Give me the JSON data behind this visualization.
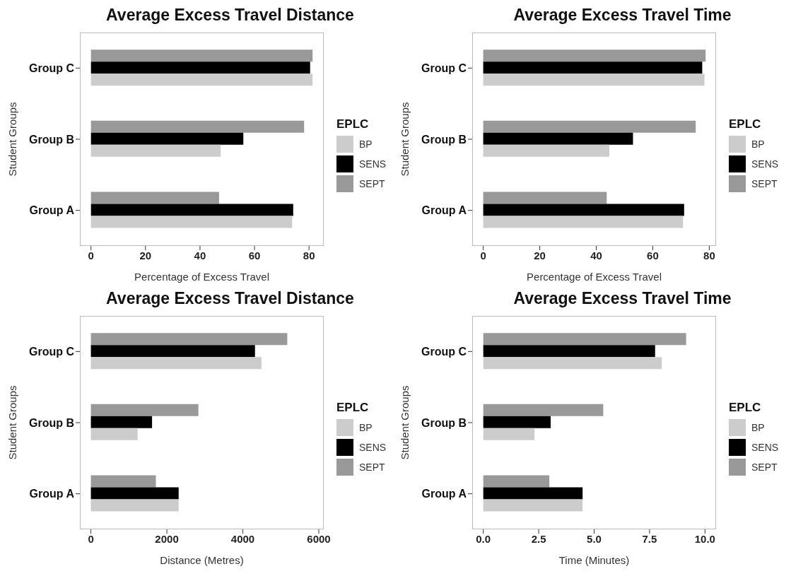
{
  "chart_data": [
    {
      "type": "bar",
      "orientation": "horizontal",
      "title": "Average Excess Travel Distance",
      "xlabel": "Percentage of Excess Travel",
      "ylabel": "Student Groups",
      "legend_title": "EPLC",
      "legend": "right",
      "grid": false,
      "categories": [
        "Group C",
        "Group B",
        "Group A"
      ],
      "xlim": [
        -4.07,
        85.4
      ],
      "xticks": [
        0,
        20,
        40,
        60,
        80
      ],
      "series": [
        {
          "name": "BP",
          "color": "#cccccc",
          "values": [
            81.3,
            47.6,
            73.8
          ]
        },
        {
          "name": "SENS",
          "color": "#000000",
          "values": [
            80.4,
            55.9,
            74.2
          ]
        },
        {
          "name": "SEPT",
          "color": "#999999",
          "values": [
            81.3,
            78.2,
            47.0
          ]
        }
      ]
    },
    {
      "type": "bar",
      "orientation": "horizontal",
      "title": "Average Excess Travel Time",
      "xlabel": "Percentage of Excess Travel",
      "ylabel": "Student Groups",
      "legend_title": "EPLC",
      "legend": "right",
      "grid": false,
      "categories": [
        "Group C",
        "Group B",
        "Group A"
      ],
      "xlim": [
        -3.9,
        82.4
      ],
      "xticks": [
        0,
        20,
        40,
        60,
        80
      ],
      "series": [
        {
          "name": "BP",
          "color": "#cccccc",
          "values": [
            78.3,
            44.6,
            70.7
          ]
        },
        {
          "name": "SENS",
          "color": "#000000",
          "values": [
            77.5,
            53.0,
            71.1
          ]
        },
        {
          "name": "SEPT",
          "color": "#999999",
          "values": [
            78.7,
            75.2,
            43.7
          ]
        }
      ]
    },
    {
      "type": "bar",
      "orientation": "horizontal",
      "title": "Average Excess Travel Distance",
      "xlabel": "Distance (Metres)",
      "ylabel": "Student Groups",
      "legend_title": "EPLC",
      "legend": "right",
      "grid": false,
      "categories": [
        "Group C",
        "Group B",
        "Group A"
      ],
      "xlim": [
        -290,
        6130
      ],
      "xticks": [
        0,
        2000,
        4000,
        6000
      ],
      "series": [
        {
          "name": "BP",
          "color": "#cccccc",
          "values": [
            4490,
            1230,
            2310
          ]
        },
        {
          "name": "SENS",
          "color": "#000000",
          "values": [
            4320,
            1610,
            2310
          ]
        },
        {
          "name": "SEPT",
          "color": "#999999",
          "values": [
            5170,
            2830,
            1710
          ]
        }
      ]
    },
    {
      "type": "bar",
      "orientation": "horizontal",
      "title": "Average Excess Travel Time",
      "xlabel": "Time (Minutes)",
      "ylabel": "Student Groups",
      "legend_title": "EPLC",
      "legend": "right",
      "grid": false,
      "categories": [
        "Group C",
        "Group B",
        "Group A"
      ],
      "xlim": [
        -0.5,
        10.5
      ],
      "xticks": [
        {
          "value": 0,
          "label": "0.0"
        },
        {
          "value": 2.5,
          "label": "2.5"
        },
        {
          "value": 5,
          "label": "5.0"
        },
        {
          "value": 7.5,
          "label": "7.5"
        },
        {
          "value": 10,
          "label": "10.0"
        }
      ],
      "series": [
        {
          "name": "BP",
          "color": "#cccccc",
          "values": [
            8.05,
            2.31,
            4.48
          ]
        },
        {
          "name": "SENS",
          "color": "#000000",
          "values": [
            7.75,
            3.04,
            4.48
          ]
        },
        {
          "name": "SEPT",
          "color": "#999999",
          "values": [
            9.15,
            5.41,
            2.98
          ]
        }
      ]
    }
  ]
}
